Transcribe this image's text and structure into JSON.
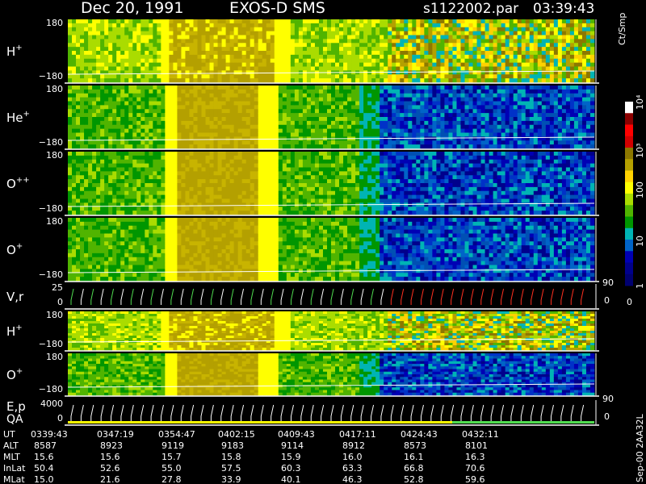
{
  "header": {
    "date": "Dec 20, 1991",
    "instrument": "EXOS-D SMS",
    "file": "s1122002.par",
    "time": "03:39:43"
  },
  "panels": [
    {
      "label": "H",
      "sup": "+",
      "ymax": "180",
      "ymin": "−180",
      "kind": "low"
    },
    {
      "label": "He",
      "sup": "+",
      "ymax": "180",
      "ymin": "−180",
      "kind": "high"
    },
    {
      "label": "O",
      "sup": "++",
      "ymax": "180",
      "ymin": "−180",
      "kind": "high"
    },
    {
      "label": "O",
      "sup": "+",
      "ymax": "180",
      "ymin": "−180",
      "kind": "high"
    },
    {
      "label": "V,r",
      "sup": "",
      "ymax": "25",
      "ymin": "0",
      "right_top": "90",
      "right_bottom": "0",
      "kind": "vel"
    },
    {
      "label": "H",
      "sup": "+",
      "ymax": "180",
      "ymin": "−180",
      "kind": "low2"
    },
    {
      "label": "O",
      "sup": "+",
      "ymax": "180",
      "ymin": "−180",
      "kind": "high2"
    },
    {
      "label": "E,p",
      "label2": "QA",
      "sup": "",
      "ymax": "4000",
      "ymin": "0",
      "right_top": "90",
      "right_bottom": "0",
      "kind": "ep"
    }
  ],
  "colorbar": {
    "unit": "Ct/Smp",
    "ticks": [
      "10⁴",
      "10³",
      "100",
      "10",
      "1"
    ],
    "tick_values": [
      10000,
      1000,
      100,
      10,
      1
    ],
    "zero": "0",
    "colors": [
      "#ffffff",
      "#8b0000",
      "#ff0000",
      "#d20000",
      "#8c7800",
      "#b4a000",
      "#ffd200",
      "#ffff00",
      "#aadc00",
      "#50b400",
      "#009600",
      "#00b4b4",
      "#0064c8",
      "#0000b4",
      "#00008c",
      "#000070"
    ]
  },
  "footer": {
    "row_labels": [
      "UT",
      "ALT",
      "MLT",
      "InLat",
      "MLat"
    ],
    "columns": [
      [
        "0339:43",
        "8587",
        "15.6",
        "50.4",
        "15.0"
      ],
      [
        "0347:19",
        "8923",
        "15.6",
        "52.6",
        "21.6"
      ],
      [
        "0354:47",
        "9119",
        "15.7",
        "55.0",
        "27.8"
      ],
      [
        "0402:15",
        "9183",
        "15.8",
        "57.5",
        "33.9"
      ],
      [
        "0409:43",
        "9114",
        "15.9",
        "60.3",
        "40.1"
      ],
      [
        "0417:11",
        "8912",
        "16.0",
        "63.3",
        "46.3"
      ],
      [
        "0424:43",
        "8573",
        "16.1",
        "66.8",
        "52.8"
      ],
      [
        "0432:11",
        "8101",
        "16.3",
        "70.6",
        "59.6"
      ]
    ],
    "code": "Sep-00  2AA32L"
  },
  "chart_data": {
    "type": "heatmap",
    "title": "Dec 20, 1991   EXOS-D SMS",
    "x": [
      "0339:43",
      "0347:19",
      "0354:47",
      "0402:15",
      "0409:43",
      "0417:11",
      "0424:43",
      "0432:11"
    ],
    "ylim": [
      -180,
      180
    ],
    "color_scale": {
      "unit": "Ct/Smp",
      "min": 1,
      "max": 10000,
      "log": true
    },
    "series": [
      {
        "name": "H+",
        "ylim": [
          -180,
          180
        ]
      },
      {
        "name": "He+",
        "ylim": [
          -180,
          180
        ]
      },
      {
        "name": "O++",
        "ylim": [
          -180,
          180
        ]
      },
      {
        "name": "O+",
        "ylim": [
          -180,
          180
        ]
      },
      {
        "name": "V,r",
        "ylim": [
          0,
          25
        ]
      },
      {
        "name": "H+",
        "ylim": [
          -180,
          180
        ]
      },
      {
        "name": "O+",
        "ylim": [
          -180,
          180
        ]
      },
      {
        "name": "E,p",
        "ylim": [
          0,
          4000
        ]
      }
    ]
  }
}
